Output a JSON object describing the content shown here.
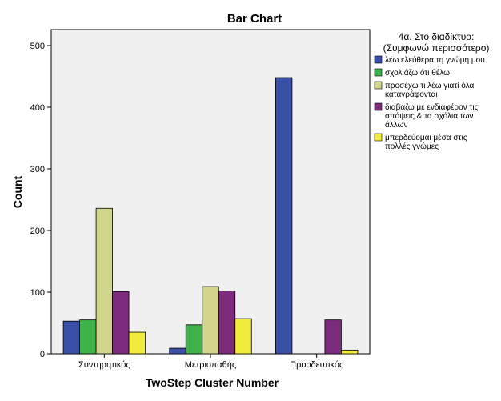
{
  "chart_data": {
    "type": "bar",
    "title": "Bar Chart",
    "xlabel": "TwoStep Cluster Number",
    "ylabel": "Count",
    "ylim": [
      0,
      500
    ],
    "yticks": [
      0,
      100,
      200,
      300,
      400,
      500
    ],
    "grid": false,
    "legend_position": "right",
    "legend_title": [
      "4α. Στο διαδίκτυο:",
      "(Συμφωνώ περισσότερο)"
    ],
    "categories": [
      "Συντηρητικός",
      "Μετριοπαθής",
      "Προοδευτικός"
    ],
    "series": [
      {
        "name": "λέω ελεύθερα τη γνώμη μου",
        "label_lines": [
          "λέω ελεύθερα τη γνώμη μου"
        ],
        "color": "#3a4fa8",
        "values": [
          53,
          9,
          448
        ]
      },
      {
        "name": "σχολιάζω ότι θέλω",
        "label_lines": [
          "σχολιάζω ότι θέλω"
        ],
        "color": "#3db34a",
        "values": [
          55,
          47,
          0
        ]
      },
      {
        "name": "προσέχω τι λέω γιατί όλα καταγράφονται",
        "label_lines": [
          "προσέχω τι λέω γιατί όλα",
          "καταγράφονται"
        ],
        "color": "#d2d58c",
        "values": [
          236,
          109,
          0
        ]
      },
      {
        "name": "διαβάζω με ενδιαφέρον τις απόψεις & τα σχόλια των άλλων",
        "label_lines": [
          "διαβάζω με ενδιαφέρον τις",
          "απόψεις & τα σχόλια των",
          "άλλων"
        ],
        "color": "#7d2b7d",
        "values": [
          101,
          102,
          55
        ]
      },
      {
        "name": "μπερδεύομαι μέσα στις πολλές γνώμες",
        "label_lines": [
          "μπερδεύομαι μέσα στις",
          "πολλές γνώμες"
        ],
        "color": "#f2ec3a",
        "values": [
          35,
          57,
          6
        ]
      }
    ]
  }
}
